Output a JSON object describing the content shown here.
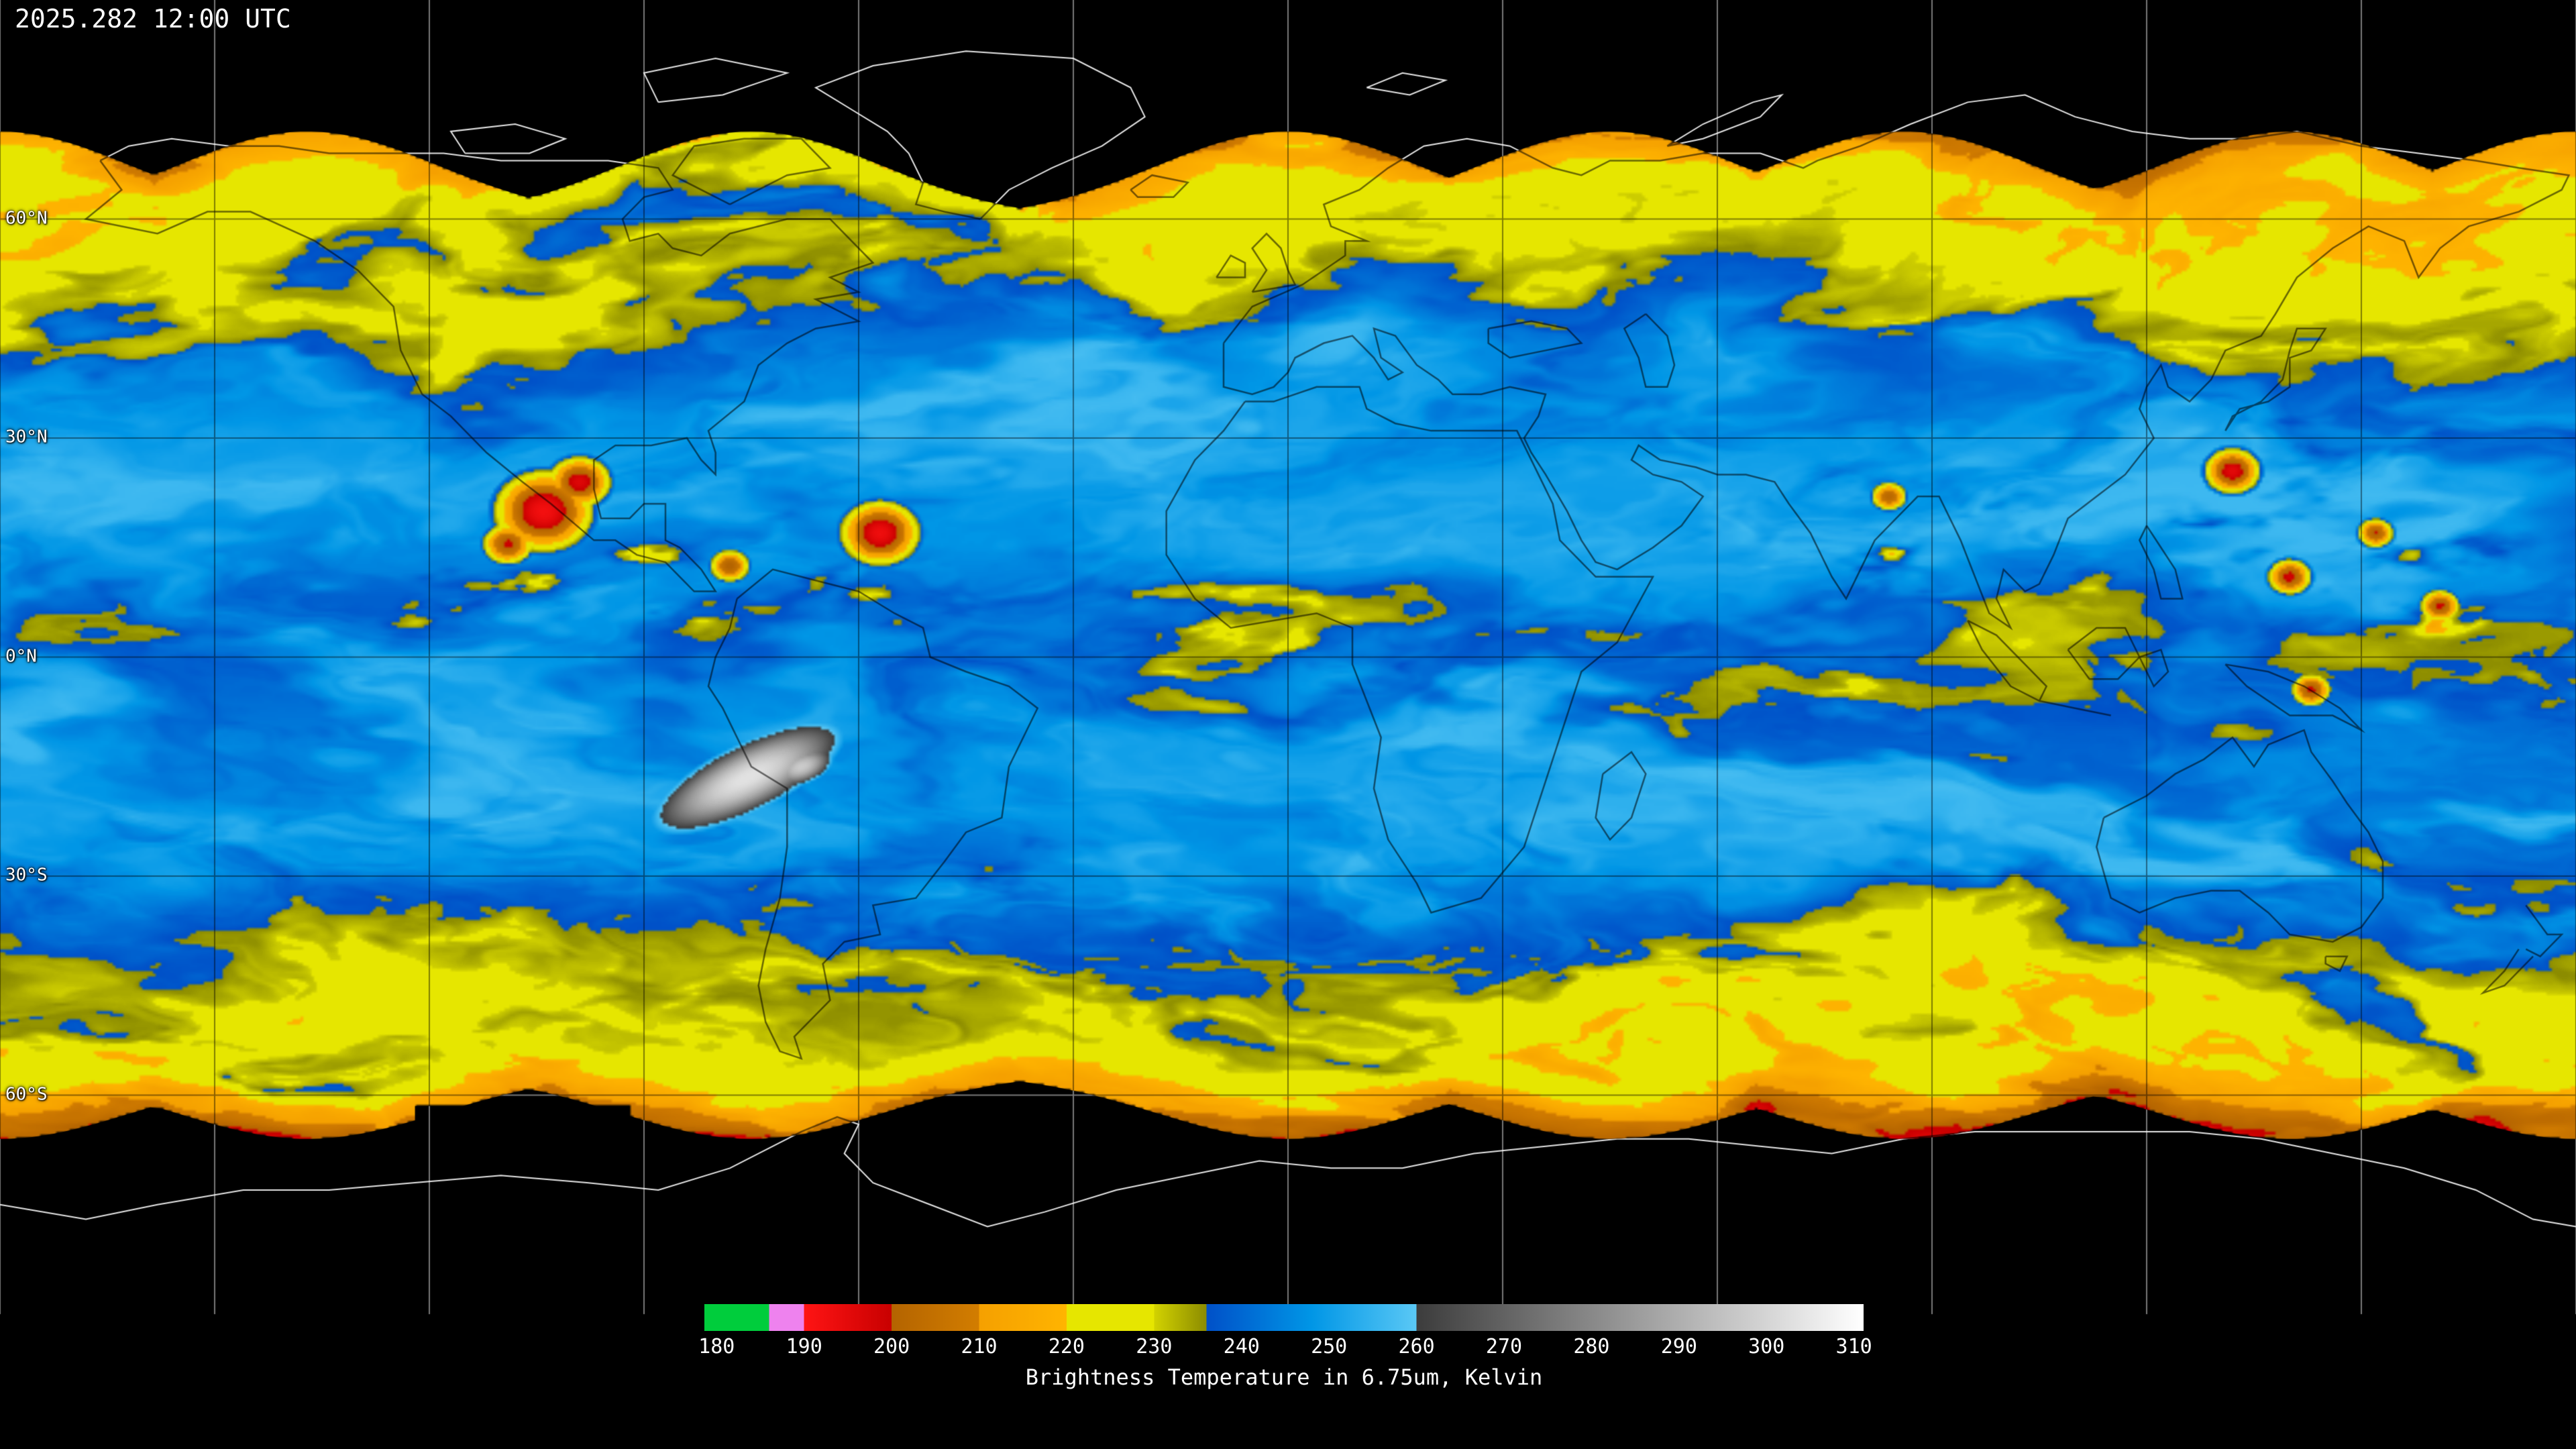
{
  "header": {
    "timestamp": "2025.282 12:00 UTC"
  },
  "map": {
    "latitude_labels": [
      {
        "label": "60°N",
        "lat": 60
      },
      {
        "label": "30°N",
        "lat": 30
      },
      {
        "label": "0°N",
        "lat": 0
      },
      {
        "label": "30°S",
        "lat": -30
      },
      {
        "label": "60°S",
        "lat": -60
      }
    ],
    "grid": {
      "lon_step_deg": 30,
      "lat_step_deg": 30
    }
  },
  "colorbar": {
    "caption": "Brightness Temperature in 6.75um, Kelvin",
    "min": 178.6,
    "max": 311.1,
    "ticks": [
      180,
      190,
      200,
      210,
      220,
      230,
      240,
      250,
      260,
      270,
      280,
      290,
      300,
      310
    ],
    "segments": [
      {
        "from": 178.6,
        "to": 186,
        "c0": "#00cd3c",
        "c1": "#00cd3c"
      },
      {
        "from": 186,
        "to": 190,
        "c0": "#ee82ee",
        "c1": "#ee82ee"
      },
      {
        "from": 190,
        "to": 200,
        "c0": "#ff1414",
        "c1": "#c80000"
      },
      {
        "from": 200,
        "to": 210,
        "c0": "#b46400",
        "c1": "#d27d00"
      },
      {
        "from": 210,
        "to": 220,
        "c0": "#f5a000",
        "c1": "#ffb400"
      },
      {
        "from": 220,
        "to": 230,
        "c0": "#e6e600",
        "c1": "#e6e600"
      },
      {
        "from": 230,
        "to": 236,
        "c0": "#d2d200",
        "c1": "#8c8c00"
      },
      {
        "from": 236,
        "to": 248,
        "c0": "#0050c8",
        "c1": "#0096e6"
      },
      {
        "from": 248,
        "to": 260,
        "c0": "#0096e6",
        "c1": "#5ac8f5"
      },
      {
        "from": 260,
        "to": 311.1,
        "c0": "#3c3c3c",
        "c1": "#ffffff"
      }
    ]
  },
  "chart_data": {
    "type": "heatmap",
    "title": "Brightness Temperature in 6.75um, Kelvin",
    "timestamp": "2025.282 12:00 UTC",
    "value_range_kelvin": [
      180,
      310
    ],
    "colorbar_ticks_kelvin": [
      180,
      190,
      200,
      210,
      220,
      230,
      240,
      250,
      260,
      270,
      280,
      290,
      300,
      310
    ],
    "latitude_gridlines_deg": [
      60,
      30,
      0,
      -30,
      -60
    ],
    "longitude_grid_step_deg": 30,
    "legend_position": "bottom-center"
  }
}
